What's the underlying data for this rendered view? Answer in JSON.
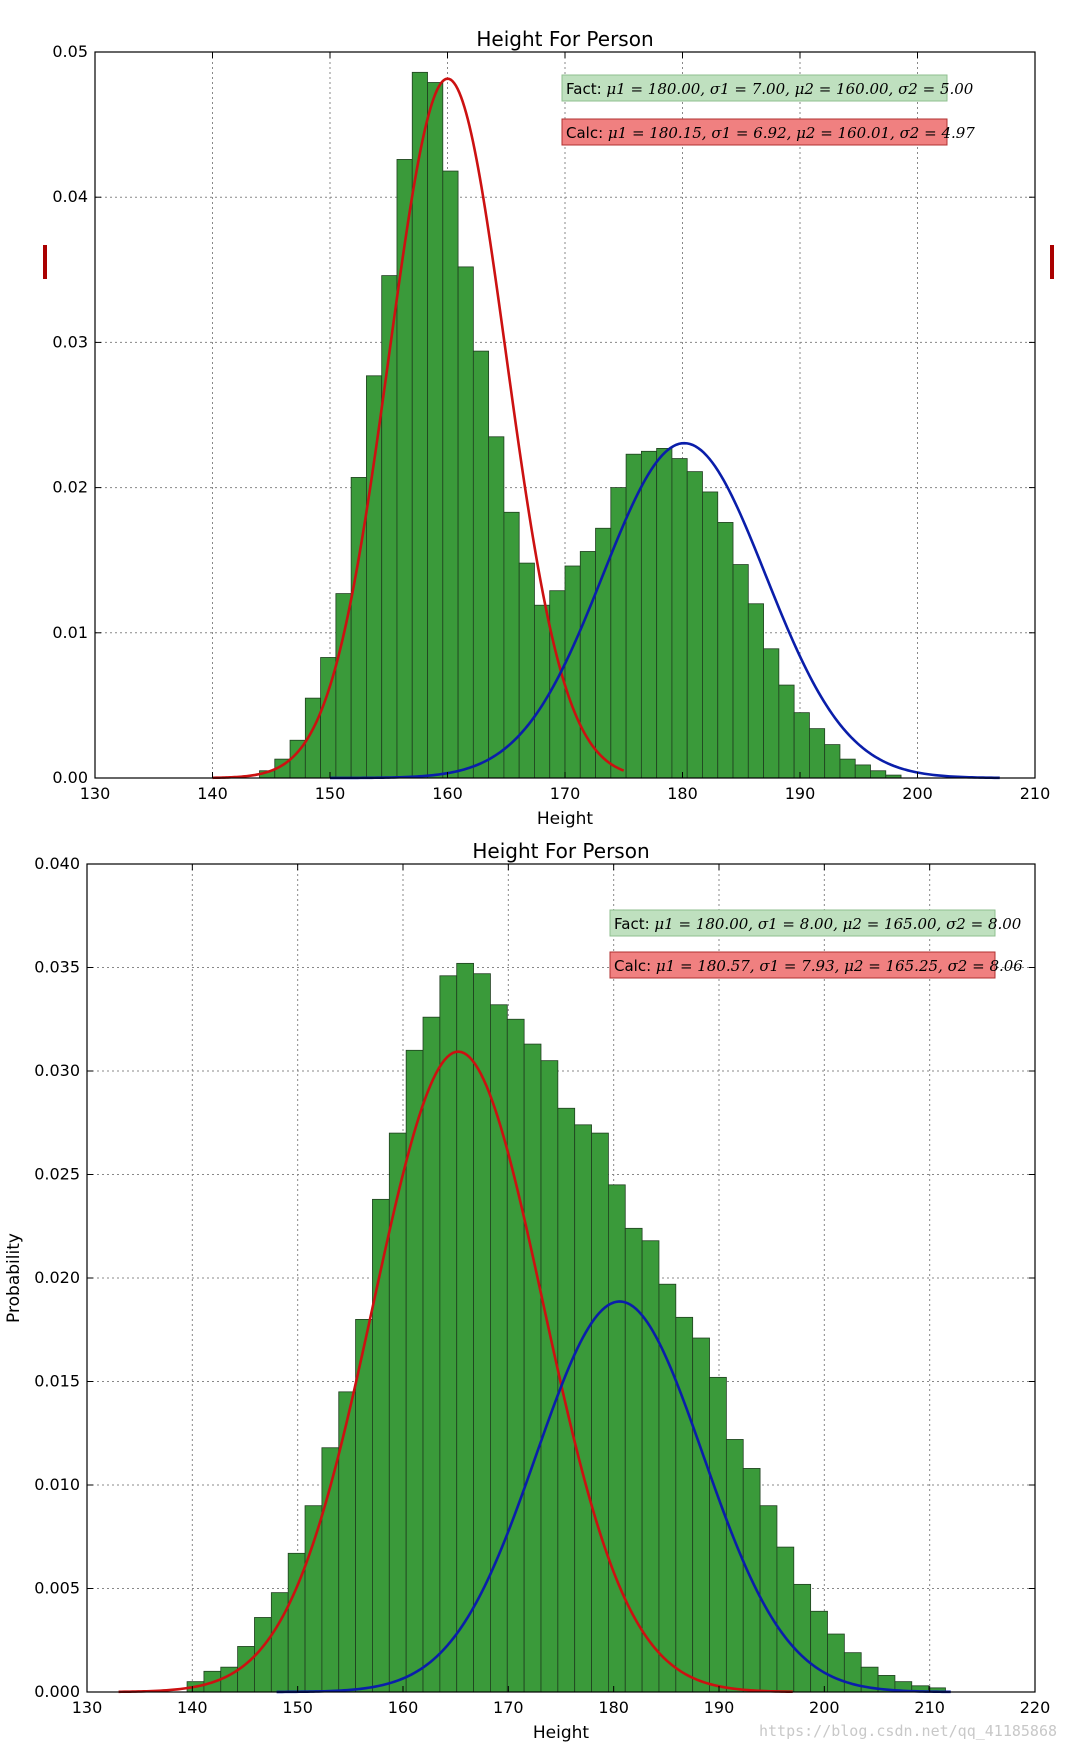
{
  "colors": {
    "bar_fill": "#3a9a3a",
    "bar_edge": "#1f3f1f",
    "red_curve": "#cc1111",
    "blue_curve": "#0a1eaa",
    "fact_box": "#bfe0bf",
    "calc_box": "#f08080",
    "grid": "#888888",
    "marker": "#aa0000"
  },
  "watermark": "https://blog.csdn.net/qq_41185868",
  "chart_data": [
    {
      "type": "bar",
      "title": "Height For Person",
      "xlabel": "Height",
      "ylabel": "",
      "xlim": [
        130,
        210
      ],
      "ylim": [
        0,
        0.05
      ],
      "xticks": [
        130,
        140,
        150,
        160,
        170,
        180,
        190,
        200,
        210
      ],
      "ytick_labels": [
        "0.00",
        "0.01",
        "0.02",
        "0.03",
        "0.04",
        "0.05"
      ],
      "grid": true,
      "legend": [
        {
          "label": "Fact",
          "formula": "μ1 = 180.00, σ1 = 7.00, μ2 = 160.00, σ2 = 5.00"
        },
        {
          "label": "Calc",
          "formula": "μ1 = 180.15, σ1 = 6.92, μ2 = 160.01, σ2 = 4.97"
        }
      ],
      "histogram": {
        "bin_start": 144,
        "bin_width": 1.3,
        "values": [
          0.0005,
          0.0013,
          0.0026,
          0.0055,
          0.0083,
          0.0127,
          0.0207,
          0.0277,
          0.0346,
          0.0426,
          0.0486,
          0.0479,
          0.0418,
          0.0352,
          0.0294,
          0.0235,
          0.0183,
          0.0148,
          0.0119,
          0.0129,
          0.0146,
          0.0156,
          0.0172,
          0.02,
          0.0223,
          0.0225,
          0.0227,
          0.022,
          0.0211,
          0.0197,
          0.0176,
          0.0147,
          0.012,
          0.0089,
          0.0064,
          0.0045,
          0.0034,
          0.0023,
          0.0013,
          0.0009,
          0.0005,
          0.0002
        ]
      },
      "curves": [
        {
          "color_key": "red_curve",
          "mu": 160.01,
          "sigma": 4.97,
          "weight": 0.6,
          "x_range": [
            140,
            175
          ]
        },
        {
          "color_key": "blue_curve",
          "mu": 180.15,
          "sigma": 6.92,
          "weight": 0.4,
          "x_range": [
            150,
            207
          ]
        }
      ]
    },
    {
      "type": "bar",
      "title": "Height For Person",
      "xlabel": "Height",
      "ylabel": "Probability",
      "xlim": [
        130,
        220
      ],
      "ylim": [
        0,
        0.04
      ],
      "xticks": [
        130,
        140,
        150,
        160,
        170,
        180,
        190,
        200,
        210,
        220
      ],
      "ytick_labels": [
        "0.000",
        "0.005",
        "0.010",
        "0.015",
        "0.020",
        "0.025",
        "0.030",
        "0.035",
        "0.040"
      ],
      "grid": true,
      "legend": [
        {
          "label": "Fact",
          "formula": "μ1 = 180.00, σ1 = 8.00, μ2 = 165.00, σ2 = 8.00"
        },
        {
          "label": "Calc",
          "formula": "μ1 = 180.57, σ1 = 7.93, μ2 = 165.25, σ2 = 8.06"
        }
      ],
      "histogram": {
        "bin_start": 139.5,
        "bin_width": 1.6,
        "values": [
          0.0005,
          0.001,
          0.0012,
          0.0022,
          0.0036,
          0.0048,
          0.0067,
          0.009,
          0.0118,
          0.0145,
          0.018,
          0.0238,
          0.027,
          0.031,
          0.0326,
          0.0346,
          0.0352,
          0.0347,
          0.0332,
          0.0325,
          0.0313,
          0.0305,
          0.0282,
          0.0274,
          0.027,
          0.0245,
          0.0224,
          0.0218,
          0.0197,
          0.0181,
          0.0171,
          0.0152,
          0.0122,
          0.0108,
          0.009,
          0.007,
          0.0052,
          0.0039,
          0.0028,
          0.0019,
          0.0012,
          0.0008,
          0.0005,
          0.0003,
          0.0002
        ]
      },
      "curves": [
        {
          "color_key": "red_curve",
          "mu": 165.25,
          "sigma": 8.06,
          "weight": 0.625,
          "x_range": [
            133,
            197
          ]
        },
        {
          "color_key": "blue_curve",
          "mu": 180.57,
          "sigma": 7.93,
          "weight": 0.375,
          "x_range": [
            148,
            212
          ]
        }
      ]
    }
  ]
}
